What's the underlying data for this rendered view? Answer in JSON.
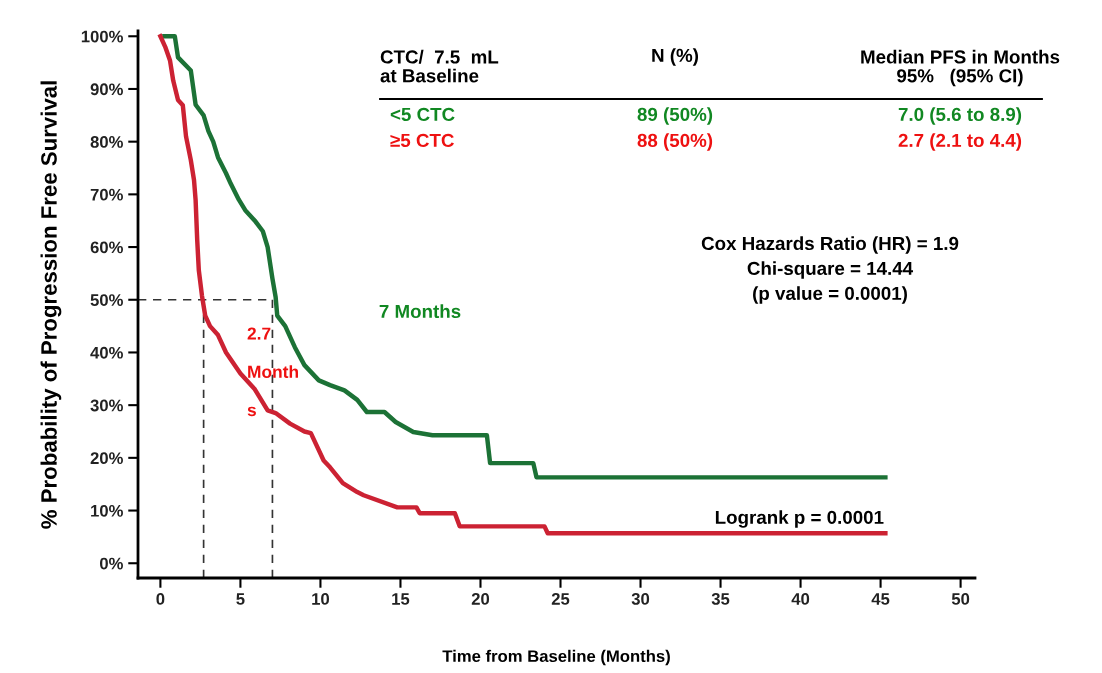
{
  "chart_data": {
    "type": "line",
    "xlabel": "Time from Baseline (Months)",
    "ylabel": "% Probability of Progression Free Survival",
    "xlim": [
      -1.4,
      50.9
    ],
    "ylim": [
      -2.8,
      101
    ],
    "xticks": [
      0,
      5,
      10,
      15,
      20,
      25,
      30,
      35,
      40,
      45,
      50
    ],
    "yticks": [
      {
        "value": 0,
        "label": "0%"
      },
      {
        "value": 10,
        "label": "10%"
      },
      {
        "value": 20,
        "label": "20%"
      },
      {
        "value": 30,
        "label": "30%"
      },
      {
        "value": 40,
        "label": "40%"
      },
      {
        "value": 50,
        "label": "50%"
      },
      {
        "value": 60,
        "label": "60%"
      },
      {
        "value": 70,
        "label": "70%"
      },
      {
        "value": 80,
        "label": "80%"
      },
      {
        "value": 90,
        "label": "90%"
      },
      {
        "value": 100,
        "label": "100%"
      }
    ],
    "grid": false,
    "legend": false,
    "marker": "none",
    "line_style": "solid",
    "series": [
      {
        "name": "<5 CTC",
        "color": "#1c7236",
        "x": [
          0.25,
          0.9,
          1.1,
          1.9,
          2.2,
          2.7,
          3.0,
          3.3,
          3.6,
          4.1,
          4.4,
          4.9,
          5.3,
          5.9,
          6.4,
          6.7,
          7.0,
          7.2,
          7.3,
          7.8,
          8.4,
          9.0,
          9.9,
          10.6,
          11.5,
          12.3,
          12.9,
          14.0,
          14.7,
          15.8,
          17.0,
          20.4,
          20.6,
          23.3,
          23.5,
          45.3
        ],
        "values": [
          100,
          100,
          96,
          93.5,
          87,
          85,
          82,
          80,
          77,
          74,
          72,
          69,
          67,
          65,
          63,
          60,
          54,
          50.5,
          47,
          45,
          41,
          37.6,
          34.7,
          33.8,
          32.8,
          31,
          28.7,
          28.7,
          26.8,
          24.9,
          24.3,
          24.3,
          19,
          19,
          16.3,
          16.3
        ]
      },
      {
        "name": "≥5 CTC",
        "color": "#cc2233",
        "x": [
          0,
          0.3,
          0.6,
          0.8,
          1.1,
          1.4,
          1.6,
          1.9,
          2.1,
          2.2,
          2.3,
          2.4,
          2.6,
          2.8,
          3.1,
          3.6,
          4.1,
          5.0,
          5.9,
          6.7,
          7.2,
          8.1,
          9.0,
          9.4,
          10.2,
          10.6,
          11.4,
          12.3,
          12.7,
          14.8,
          16.0,
          16.2,
          18.4,
          18.7,
          24.0,
          24.2,
          45.3
        ],
        "values": [
          100,
          98,
          95.4,
          91.6,
          87.9,
          86.9,
          81,
          76.5,
          72.7,
          68.9,
          61.3,
          55.6,
          50.7,
          47,
          45,
          43.3,
          40,
          36,
          33,
          29,
          28.5,
          26.5,
          25,
          24.7,
          19.5,
          18.2,
          15.2,
          13.5,
          12.9,
          10.6,
          10.6,
          9.5,
          9.5,
          7.0,
          7.0,
          5.7,
          5.7
        ]
      },
      {
        "color": "#333333",
        "line_style": "dashed",
        "x": [
          -1.4,
          7
        ],
        "values": [
          50,
          50
        ]
      },
      {
        "color": "#333333",
        "line_style": "dashed",
        "x": [
          2.7,
          2.7
        ],
        "values": [
          -2.8,
          50
        ]
      },
      {
        "color": "#333333",
        "line_style": "dashed",
        "x": [
          7,
          7
        ],
        "values": [
          -2.8,
          50
        ]
      }
    ],
    "annotations": [
      "CTC/  7.5  mL\nat Baseline",
      "N (%)",
      "Median PFS in Months\n95%   (95% CI)",
      "89 (50%)",
      "7.0 (5.6 to 8.9)",
      "88 (50%)",
      "2.7 (2.1 to 4.4)",
      "Cox Hazards Ratio (HR) = 1.9\nChi-square = 14.44\n(p value = 0.0001)",
      "Logrank p = 0.0001",
      "7 Months",
      "2.7\nMonth\ns"
    ]
  }
}
